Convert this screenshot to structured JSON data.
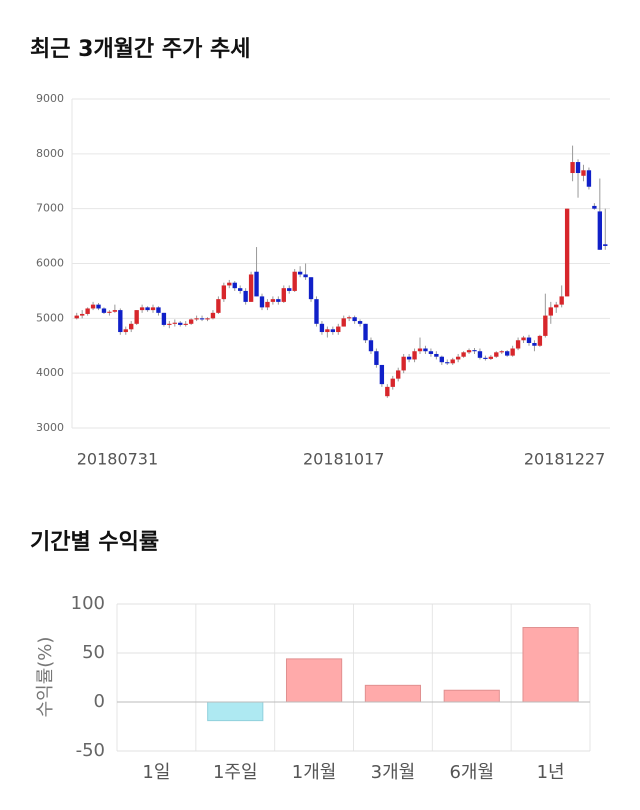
{
  "chart_data": [
    {
      "type": "candlestick",
      "title": "최근 3개월간 주가 추세",
      "categories": [
        "20180731",
        null,
        null,
        null,
        null,
        null,
        null,
        null,
        null,
        null,
        null,
        null,
        null,
        null,
        null,
        null,
        null,
        null,
        null,
        null,
        null,
        null,
        null,
        null,
        null,
        null,
        null,
        null,
        null,
        null,
        null,
        null,
        null,
        null,
        null,
        null,
        null,
        null,
        null,
        null,
        null,
        null,
        null,
        null,
        null,
        null,
        null,
        null,
        null,
        "20181017",
        null,
        null,
        null,
        null,
        null,
        null,
        null,
        null,
        null,
        null,
        null,
        null,
        null,
        null,
        null,
        null,
        null,
        null,
        null,
        null,
        null,
        null,
        null,
        null,
        null,
        null,
        null,
        null,
        null,
        null,
        null,
        null,
        null,
        null,
        null,
        null,
        null,
        null,
        null,
        null,
        null,
        null,
        null,
        null,
        null,
        null,
        null,
        "20181227"
      ],
      "open": [
        5000,
        5050,
        5080,
        5180,
        5250,
        5180,
        5100,
        5120,
        5150,
        4750,
        4800,
        4900,
        5150,
        5200,
        5150,
        5200,
        5100,
        4880,
        4900,
        4920,
        4880,
        4900,
        4980,
        5000,
        4980,
        5000,
        5100,
        5350,
        5600,
        5650,
        5550,
        5500,
        5300,
        5850,
        5400,
        5200,
        5300,
        5350,
        5300,
        5550,
        5500,
        5850,
        5800,
        5750,
        5350,
        4900,
        4750,
        4800,
        4750,
        4850,
        5000,
        5020,
        4950,
        4900,
        4600,
        4400,
        4150,
        3580,
        3750,
        3900,
        4050,
        4300,
        4250,
        4400,
        4450,
        4400,
        4350,
        4300,
        4200,
        4180,
        4250,
        4300,
        4380,
        4420,
        4400,
        4280,
        4260,
        4300,
        4380,
        4400,
        4320,
        4450,
        4600,
        4650,
        4550,
        4500,
        4680,
        5050,
        5200,
        5250,
        5400,
        7650,
        7850,
        7600,
        7700,
        7050,
        6950,
        6350
      ],
      "high": [
        5100,
        5150,
        5200,
        5300,
        5280,
        5200,
        5150,
        5250,
        5180,
        4850,
        4950,
        5150,
        5250,
        5220,
        5250,
        5220,
        5100,
        4950,
        4980,
        4950,
        4950,
        5000,
        5050,
        5050,
        5020,
        5150,
        5400,
        5650,
        5700,
        5680,
        5600,
        5550,
        5850,
        6300,
        5450,
        5350,
        5400,
        5400,
        5600,
        5600,
        5900,
        5950,
        6000,
        5750,
        5400,
        4950,
        4850,
        4850,
        4900,
        5050,
        5050,
        5050,
        4980,
        4900,
        4650,
        4450,
        4150,
        3800,
        3950,
        4100,
        4350,
        4350,
        4450,
        4650,
        4500,
        4450,
        4400,
        4320,
        4250,
        4280,
        4350,
        4400,
        4450,
        4460,
        4450,
        4320,
        4330,
        4400,
        4420,
        4420,
        4500,
        4650,
        4680,
        4700,
        4600,
        4700,
        5450,
        5300,
        5300,
        5600,
        7000,
        8150,
        7900,
        7800,
        7750,
        7100,
        7550,
        7000
      ],
      "low": [
        4980,
        5000,
        5050,
        5150,
        5150,
        5080,
        5050,
        5100,
        4700,
        4700,
        4750,
        4880,
        5100,
        5120,
        5100,
        5050,
        4850,
        4820,
        4850,
        4850,
        4850,
        4880,
        4950,
        4950,
        4950,
        4980,
        5080,
        5300,
        5550,
        5500,
        5450,
        5250,
        5300,
        5400,
        5150,
        5150,
        5250,
        5250,
        5280,
        5450,
        5480,
        5750,
        5700,
        5300,
        4850,
        4700,
        4650,
        4700,
        4700,
        4850,
        4950,
        4900,
        4850,
        4550,
        4350,
        4100,
        3750,
        3550,
        3700,
        3850,
        4000,
        4200,
        4200,
        4350,
        4350,
        4300,
        4250,
        4150,
        4150,
        4150,
        4200,
        4280,
        4350,
        4350,
        4250,
        4230,
        4240,
        4280,
        4350,
        4300,
        4300,
        4420,
        4550,
        4500,
        4400,
        4480,
        4650,
        4900,
        5100,
        5200,
        5400,
        7500,
        7200,
        7500,
        7350,
        6980,
        6250,
        6250
      ],
      "close": [
        5050,
        5080,
        5180,
        5250,
        5180,
        5100,
        5120,
        5150,
        4750,
        4800,
        4900,
        5150,
        5200,
        5150,
        5200,
        5100,
        4880,
        4900,
        4920,
        4880,
        4900,
        4980,
        5000,
        4980,
        5000,
        5100,
        5350,
        5600,
        5650,
        5550,
        5500,
        5300,
        5800,
        5400,
        5200,
        5300,
        5350,
        5300,
        5550,
        5500,
        5850,
        5800,
        5750,
        5350,
        4900,
        4750,
        4800,
        4750,
        4850,
        5000,
        5020,
        4950,
        4900,
        4600,
        4400,
        4150,
        3800,
        3750,
        3900,
        4050,
        4300,
        4250,
        4400,
        4450,
        4400,
        4350,
        4300,
        4200,
        4180,
        4250,
        4300,
        4380,
        4420,
        4400,
        4280,
        4260,
        4300,
        4380,
        4400,
        4320,
        4450,
        4600,
        4650,
        4550,
        4500,
        4680,
        5050,
        5200,
        5250,
        5400,
        7000,
        7850,
        7650,
        7700,
        7400,
        7000,
        6250,
        6320
      ],
      "up_color": "#d7262b",
      "down_color": "#1020c8",
      "ylim": [
        3000,
        9000
      ],
      "yticks": [
        3000,
        4000,
        5000,
        6000,
        7000,
        8000,
        9000
      ],
      "grid": true
    },
    {
      "type": "bar",
      "title": "기간별 수익률",
      "ylabel": "수익률(%)",
      "categories": [
        "1일",
        "1주일",
        "1개월",
        "3개월",
        "6개월",
        "1년"
      ],
      "values": [
        0,
        -19,
        44,
        17,
        12,
        76
      ],
      "positive_color": "#ffaaaa",
      "negative_color": "#aee9f2",
      "ylim": [
        -50,
        100
      ],
      "yticks": [
        -50,
        0,
        50,
        100
      ],
      "grid": true
    }
  ]
}
